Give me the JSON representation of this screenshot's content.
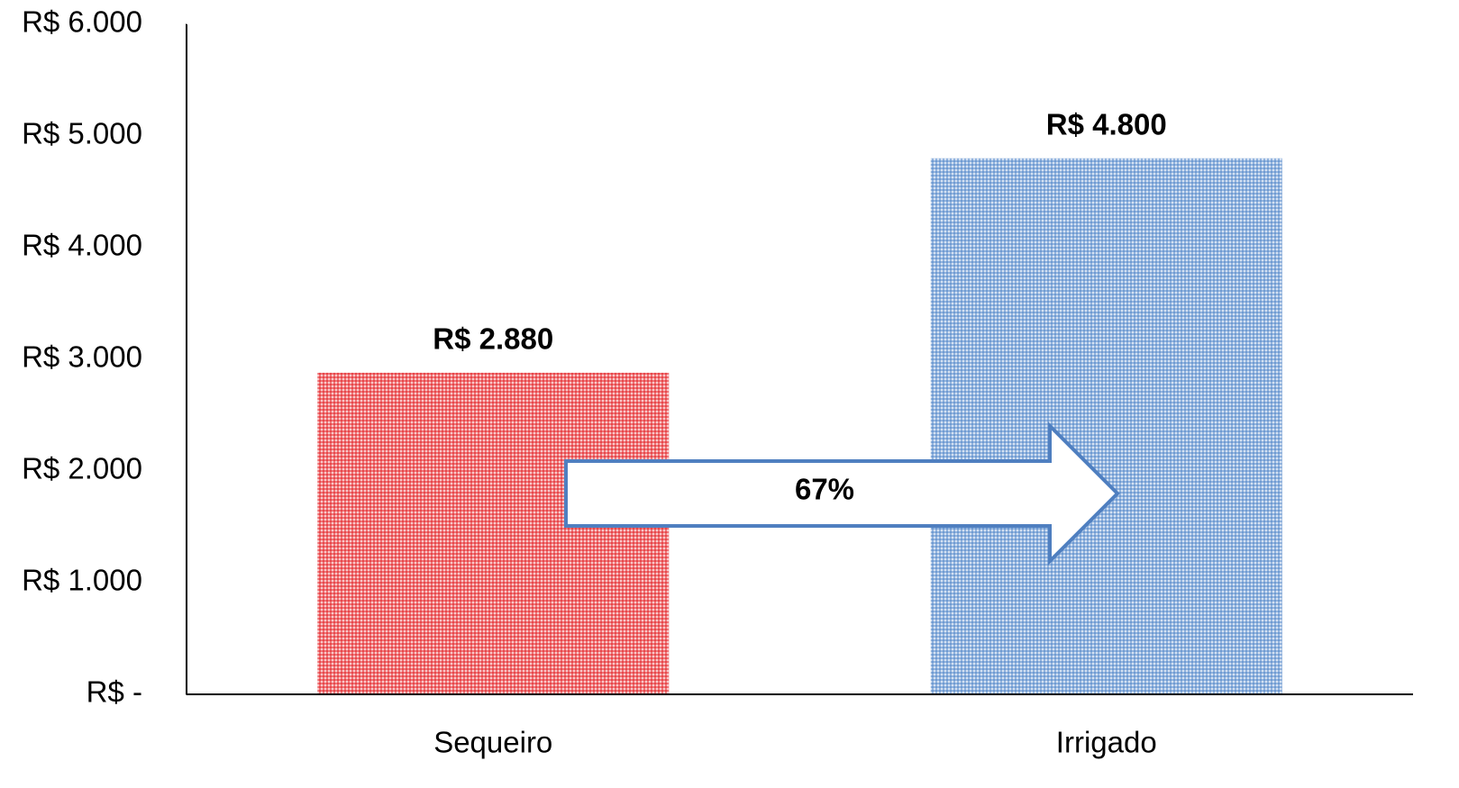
{
  "chart_data": {
    "type": "bar",
    "categories": [
      "Sequeiro",
      "Irrigado"
    ],
    "values": [
      2880,
      4800
    ],
    "value_labels": [
      "R$ 2.880",
      "R$ 4.800"
    ],
    "colors": [
      "#e8474a",
      "#6f9bd2"
    ],
    "ylim": [
      0,
      6000
    ],
    "yticks": [
      {
        "value": 0,
        "label": "R$ -"
      },
      {
        "value": 1000,
        "label": "R$ 1.000"
      },
      {
        "value": 2000,
        "label": "R$ 2.000"
      },
      {
        "value": 3000,
        "label": "R$ 3.000"
      },
      {
        "value": 4000,
        "label": "R$ 4.000"
      },
      {
        "value": 5000,
        "label": "R$ 5.000"
      },
      {
        "value": 6000,
        "label": "R$ 6.000"
      }
    ],
    "annotation": "67%",
    "grid": false
  }
}
